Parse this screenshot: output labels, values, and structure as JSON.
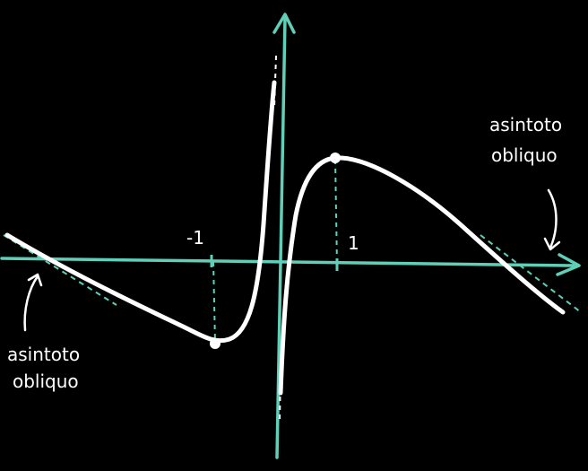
{
  "colors": {
    "background": "#000000",
    "axis": "#5fcfb8",
    "curve": "#ffffff",
    "asymptote": "#5fcfb8"
  },
  "labels": {
    "tick_neg": "-1",
    "tick_pos": "1",
    "annotation_left_line1": "asintoto",
    "annotation_left_line2": "obliquo",
    "annotation_right_line1": "asintoto",
    "annotation_right_line2": "obliquo"
  }
}
